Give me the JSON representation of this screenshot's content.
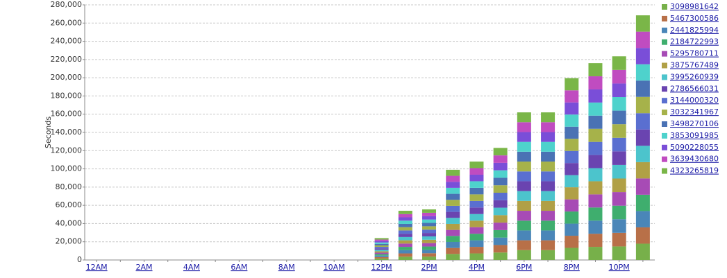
{
  "chart_data": {
    "type": "stacked-bar",
    "y_label": "Seconds",
    "categories": [
      "12AM",
      null,
      "2AM",
      null,
      "4AM",
      null,
      "6AM",
      null,
      "8AM",
      null,
      "10AM",
      null,
      "12PM",
      null,
      "2PM",
      null,
      "4PM",
      null,
      "6PM",
      null,
      "8PM",
      null,
      "10PM",
      null
    ],
    "ylim": [
      0,
      280000
    ],
    "yticks": [
      {
        "value": 0,
        "label": "0"
      },
      {
        "value": 20000,
        "label": "20,000"
      },
      {
        "value": 40000,
        "label": "40,000"
      },
      {
        "value": 60000,
        "label": "60,000"
      },
      {
        "value": 80000,
        "label": "80,000"
      },
      {
        "value": 100000,
        "label": "100,000"
      },
      {
        "value": 120000,
        "label": "120,000"
      },
      {
        "value": 140000,
        "label": "140,000"
      },
      {
        "value": 160000,
        "label": "160,000"
      },
      {
        "value": 180000,
        "label": "180,000"
      },
      {
        "value": 200000,
        "label": "200,000"
      },
      {
        "value": 220000,
        "label": "220,000"
      },
      {
        "value": 240000,
        "label": "240,000"
      },
      {
        "value": 260000,
        "label": "260,000"
      },
      {
        "value": 280000,
        "label": "280,000"
      }
    ],
    "grid": true,
    "series": [
      {
        "name": "3098981642",
        "color": "#77b04a",
        "values": [
          0,
          0,
          0,
          0,
          0,
          0,
          0,
          0,
          0,
          0,
          0,
          0,
          1600,
          3600,
          3700,
          6600,
          7200,
          8200,
          10800,
          10800,
          13300,
          14400,
          14900,
          17900
        ]
      },
      {
        "name": "5467300586",
        "color": "#b87048",
        "values": [
          0,
          0,
          0,
          0,
          0,
          0,
          0,
          0,
          0,
          0,
          0,
          0,
          1600,
          3600,
          3700,
          6600,
          7200,
          8200,
          10800,
          10800,
          13300,
          14400,
          14900,
          17900
        ]
      },
      {
        "name": "2441825994",
        "color": "#4a86b8",
        "values": [
          0,
          0,
          0,
          0,
          0,
          0,
          0,
          0,
          0,
          0,
          0,
          0,
          1600,
          3600,
          3700,
          6600,
          7200,
          8200,
          10800,
          10800,
          13300,
          14400,
          14900,
          17900
        ]
      },
      {
        "name": "2184722993",
        "color": "#3fae6e",
        "values": [
          0,
          0,
          0,
          0,
          0,
          0,
          0,
          0,
          0,
          0,
          0,
          0,
          1600,
          3600,
          3700,
          6600,
          7200,
          8200,
          10800,
          10800,
          13300,
          14400,
          14900,
          17900
        ]
      },
      {
        "name": "5295780711",
        "color": "#a74bb5",
        "values": [
          0,
          0,
          0,
          0,
          0,
          0,
          0,
          0,
          0,
          0,
          0,
          0,
          1600,
          3600,
          3700,
          6600,
          7200,
          8200,
          10800,
          10800,
          13300,
          14400,
          14900,
          17900
        ]
      },
      {
        "name": "3875767489",
        "color": "#b0a046",
        "values": [
          0,
          0,
          0,
          0,
          0,
          0,
          0,
          0,
          0,
          0,
          0,
          0,
          1600,
          3600,
          3700,
          6600,
          7200,
          8200,
          10800,
          10800,
          13300,
          14400,
          14900,
          17900
        ]
      },
      {
        "name": "3995260939",
        "color": "#4cc4cc",
        "values": [
          0,
          0,
          0,
          0,
          0,
          0,
          0,
          0,
          0,
          0,
          0,
          0,
          1600,
          3600,
          3700,
          6600,
          7200,
          8200,
          10800,
          10800,
          13300,
          14400,
          14900,
          17900
        ]
      },
      {
        "name": "2786566031",
        "color": "#6a44b0",
        "values": [
          0,
          0,
          0,
          0,
          0,
          0,
          0,
          0,
          0,
          0,
          0,
          0,
          1600,
          3600,
          3700,
          6600,
          7200,
          8200,
          10800,
          10800,
          13300,
          14400,
          14900,
          17900
        ]
      },
      {
        "name": "3144000320",
        "color": "#5a6fd0",
        "values": [
          0,
          0,
          0,
          0,
          0,
          0,
          0,
          0,
          0,
          0,
          0,
          0,
          1600,
          3600,
          3700,
          6600,
          7200,
          8200,
          10800,
          10800,
          13300,
          14400,
          14900,
          17900
        ]
      },
      {
        "name": "3032341967",
        "color": "#a6b24a",
        "values": [
          0,
          0,
          0,
          0,
          0,
          0,
          0,
          0,
          0,
          0,
          0,
          0,
          1600,
          3600,
          3700,
          6600,
          7200,
          8200,
          10800,
          10800,
          13300,
          14400,
          14900,
          17900
        ]
      },
      {
        "name": "3498270106",
        "color": "#4a72b4",
        "values": [
          0,
          0,
          0,
          0,
          0,
          0,
          0,
          0,
          0,
          0,
          0,
          0,
          1600,
          3600,
          3700,
          6600,
          7200,
          8200,
          10800,
          10800,
          13300,
          14400,
          14900,
          17900
        ]
      },
      {
        "name": "3853091985",
        "color": "#4ed2cc",
        "values": [
          0,
          0,
          0,
          0,
          0,
          0,
          0,
          0,
          0,
          0,
          0,
          0,
          1600,
          3600,
          3700,
          6600,
          7200,
          8200,
          10800,
          10800,
          13300,
          14400,
          14900,
          17900
        ]
      },
      {
        "name": "5090228055",
        "color": "#7a4ed8",
        "values": [
          0,
          0,
          0,
          0,
          0,
          0,
          0,
          0,
          0,
          0,
          0,
          0,
          1600,
          3600,
          3700,
          6600,
          7200,
          8200,
          10800,
          10800,
          13300,
          14400,
          14900,
          17900
        ]
      },
      {
        "name": "3639430680",
        "color": "#c04cc0",
        "values": [
          0,
          0,
          0,
          0,
          0,
          0,
          0,
          0,
          0,
          0,
          0,
          0,
          1600,
          3600,
          3700,
          6600,
          7200,
          8200,
          10800,
          10800,
          13300,
          14400,
          14900,
          17900
        ]
      },
      {
        "name": "4323265819",
        "color": "#7ab648",
        "values": [
          0,
          0,
          0,
          0,
          0,
          0,
          0,
          0,
          0,
          0,
          0,
          0,
          1600,
          3600,
          3700,
          6600,
          7200,
          8200,
          10800,
          10800,
          13300,
          14400,
          14900,
          17900
        ]
      }
    ]
  }
}
